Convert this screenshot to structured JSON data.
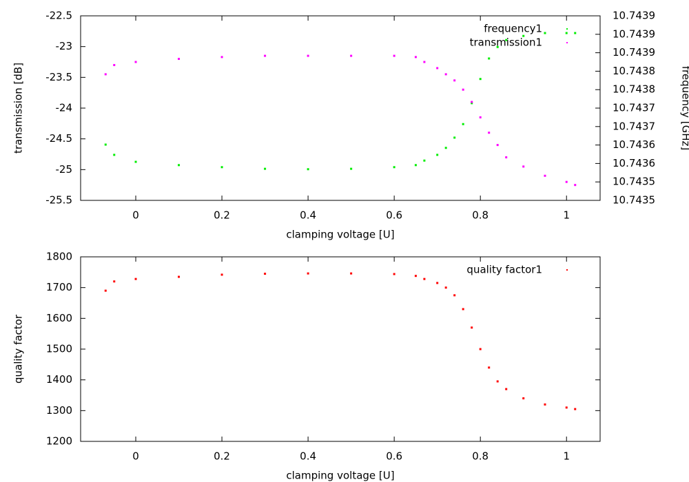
{
  "chart_data": [
    {
      "type": "scatter",
      "xlabel": "clamping voltage [U]",
      "ylabel": "transmission [dB]",
      "y2label": "frequency [GHz]",
      "legend": "top right",
      "x": [
        -0.07,
        -0.05,
        0,
        0.1,
        0.2,
        0.3,
        0.4,
        0.5,
        0.6,
        0.65,
        0.67,
        0.7,
        0.72,
        0.74,
        0.76,
        0.78,
        0.8,
        0.82,
        0.84,
        0.86,
        0.9,
        0.95,
        1.0,
        1.02
      ],
      "xlim": [
        -0.128,
        1.078
      ],
      "xticks": [
        0,
        0.2,
        0.4,
        0.6,
        0.8,
        1
      ],
      "ylim": [
        -25.5,
        -22.5
      ],
      "yticks": [
        -25.5,
        -25,
        -24.5,
        -24,
        -23.5,
        -23,
        -22.5
      ],
      "y2lim": [
        10.74348,
        10.74393
      ],
      "y2ticks": [
        {
          "value": 10.74348,
          "label": "10.7435"
        },
        {
          "value": 10.743525,
          "label": "10.7435"
        },
        {
          "value": 10.74357,
          "label": "10.7436"
        },
        {
          "value": 10.743615,
          "label": "10.7436"
        },
        {
          "value": 10.74366,
          "label": "10.7437"
        },
        {
          "value": 10.743705,
          "label": "10.7437"
        },
        {
          "value": 10.74375,
          "label": "10.7438"
        },
        {
          "value": 10.743795,
          "label": "10.7438"
        },
        {
          "value": 10.74384,
          "label": "10.7439"
        },
        {
          "value": 10.743885,
          "label": "10.7439"
        },
        {
          "value": 10.74393,
          "label": "10.7439"
        }
      ],
      "series": [
        {
          "name": "frequency1",
          "color": "#00ee00",
          "axis": "y2",
          "values": [
            10.743616,
            10.743591,
            10.743574,
            10.743566,
            10.743561,
            10.743557,
            10.743556,
            10.743557,
            10.743561,
            10.743566,
            10.743577,
            10.743591,
            10.743608,
            10.743633,
            10.743666,
            10.743717,
            10.743776,
            10.743826,
            10.743854,
            10.743871,
            10.743881,
            10.743888,
            10.743888,
            10.743888
          ]
        },
        {
          "name": "transmission1",
          "color": "#ff00ff",
          "values": [
            -23.45,
            -23.3,
            -23.25,
            -23.2,
            -23.17,
            -23.15,
            -23.15,
            -23.15,
            -23.15,
            -23.17,
            -23.25,
            -23.35,
            -23.45,
            -23.55,
            -23.7,
            -23.9,
            -24.15,
            -24.4,
            -24.6,
            -24.8,
            -24.95,
            -25.1,
            -25.2,
            -25.25
          ]
        }
      ]
    },
    {
      "type": "scatter",
      "xlabel": "clamping voltage [U]",
      "ylabel": "quality factor",
      "legend": "top right",
      "x": [
        -0.07,
        -0.05,
        0,
        0.1,
        0.2,
        0.3,
        0.4,
        0.5,
        0.6,
        0.65,
        0.67,
        0.7,
        0.72,
        0.74,
        0.76,
        0.78,
        0.8,
        0.82,
        0.84,
        0.86,
        0.9,
        0.95,
        1.0,
        1.02
      ],
      "xlim": [
        -0.128,
        1.078
      ],
      "xticks": [
        0,
        0.2,
        0.4,
        0.6,
        0.8,
        1
      ],
      "ylim": [
        1200,
        1800
      ],
      "yticks": [
        1200,
        1300,
        1400,
        1500,
        1600,
        1700,
        1800
      ],
      "series": [
        {
          "name": "quality factor1",
          "color": "#ff0000",
          "values": [
            1690,
            1720,
            1728,
            1735,
            1742,
            1745,
            1746,
            1746,
            1744,
            1738,
            1728,
            1715,
            1700,
            1675,
            1630,
            1570,
            1500,
            1440,
            1395,
            1370,
            1340,
            1320,
            1310,
            1305
          ]
        }
      ]
    }
  ]
}
